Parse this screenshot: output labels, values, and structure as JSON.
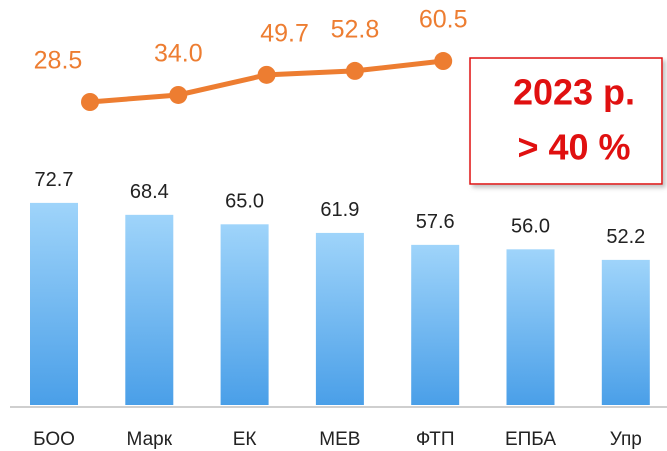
{
  "chart_data": [
    {
      "type": "bar",
      "categories": [
        "БОО",
        "Марк",
        "ЕК",
        "МЕВ",
        "ФТП",
        "ЕПБА",
        "Упр"
      ],
      "values": [
        72.7,
        68.4,
        65.0,
        61.9,
        57.6,
        56.0,
        52.2
      ],
      "value_labels": [
        "72.7",
        "68.4",
        "65.0",
        "61.9",
        "57.6",
        "56.0",
        "52.2"
      ],
      "color": "#5aaef0"
    },
    {
      "type": "line",
      "values": [
        28.5,
        34.0,
        49.7,
        52.8,
        60.5
      ],
      "value_labels": [
        "28.5",
        "34.0",
        "49.7",
        "52.8",
        "60.5"
      ],
      "color": "#ed7d31",
      "annotations": [
        "2023 р.",
        "> 40 %"
      ]
    }
  ]
}
